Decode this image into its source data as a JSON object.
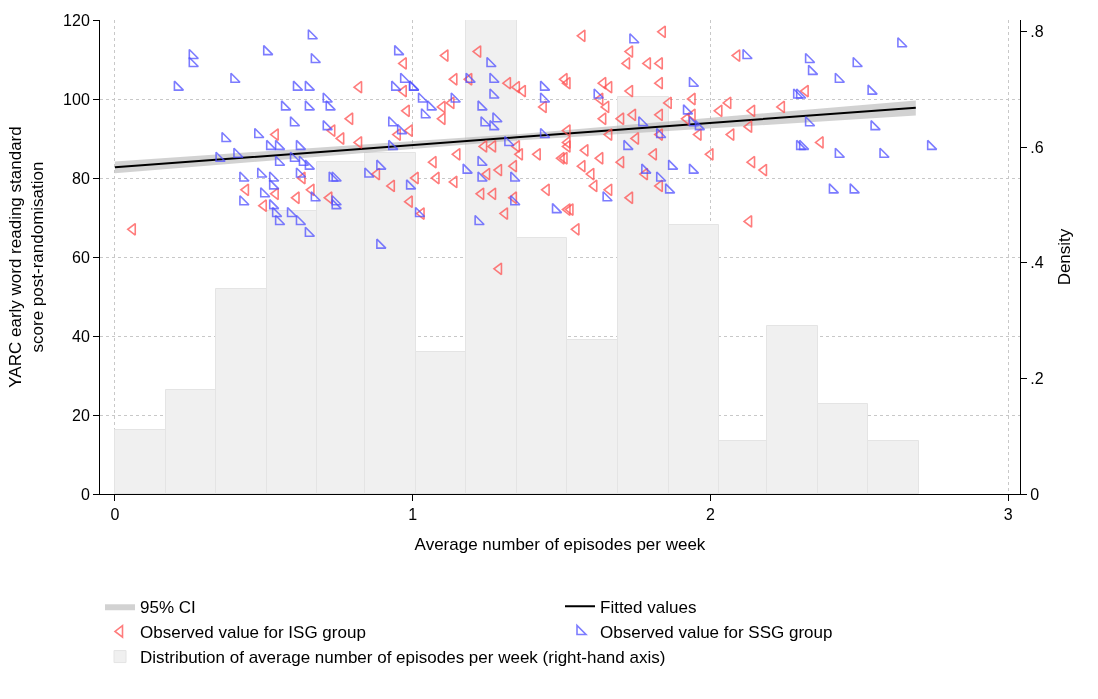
{
  "chart_data": {
    "type": "scatter",
    "xlabel": "Average number of episodes per week",
    "ylabel": "YARC early word reading standard score post-randomisation",
    "y2label": "Density",
    "xlim": [
      -0.05,
      3.04
    ],
    "xticks": [
      0,
      1,
      2,
      3
    ],
    "ylim": [
      0,
      120
    ],
    "yticks": [
      0,
      20,
      40,
      60,
      80,
      100,
      120
    ],
    "y2lim": [
      0,
      0.82
    ],
    "y2ticks": [
      0,
      {
        "value": 0.2,
        "label": ".2"
      },
      {
        "value": 0.4,
        "label": ".4"
      },
      {
        "value": 0.6,
        "label": ".6"
      },
      {
        "value": 0.8,
        "label": ".8"
      }
    ],
    "grid": true,
    "legend": "bottom",
    "series": [
      {
        "type": "histogram",
        "name": "Distribution of average number of episodes per week (right-hand axis)",
        "axis": "y2",
        "color": "#f0f0f0",
        "bins": [
          0,
          0.17,
          0.34,
          0.51,
          0.68,
          0.84,
          1.01,
          1.18,
          1.35,
          1.52,
          1.69,
          1.86,
          2.03,
          2.19,
          2.36,
          2.53,
          2.7
        ],
        "values": [
          0.11,
          0.18,
          0.355,
          0.49,
          0.575,
          0.59,
          0.245,
          0.82,
          0.443,
          0.266,
          0.687,
          0.466,
          0.091,
          0.29,
          0.156,
          0.091
        ]
      },
      {
        "type": "line",
        "name": "95% CI",
        "color": "#b4b4b4",
        "x": [
          0,
          1.35,
          2.69
        ],
        "values": [
          null,
          null,
          null
        ],
        "lower": [
          81.2,
          89.5,
          95.8
        ],
        "upper": [
          84.2,
          91.1,
          99.6
        ]
      },
      {
        "type": "line",
        "name": "Fitted values",
        "color": "#000000",
        "x": [
          0,
          1.35,
          2.69
        ],
        "values": [
          82.7,
          90.3,
          97.8
        ]
      },
      {
        "name": "Observed value for ISG group",
        "color": "#ff5050",
        "x": [
          0.54,
          0.73,
          0.44,
          0.5,
          0.54,
          0.61,
          0.63,
          0.66,
          0.72,
          0.06,
          0.82,
          0.97,
          0.97,
          0.79,
          0.76,
          0.82,
          0.98,
          0.99,
          0.95,
          0.88,
          0.93,
          1.01,
          0.99,
          1.03,
          1.07,
          1.08,
          1.14,
          1.15,
          1.11,
          1.14,
          1.1,
          1.1,
          1.13,
          1.22,
          1.19,
          1.24,
          1.27,
          1.25,
          1.29,
          1.23,
          1.27,
          1.29,
          1.31,
          1.34,
          1.32,
          1.35,
          1.37,
          1.35,
          1.36,
          1.34,
          1.42,
          1.44,
          1.45,
          1.5,
          1.51,
          1.52,
          1.52,
          1.57,
          1.84,
          1.73,
          1.72,
          1.79,
          1.83,
          1.52,
          1.64,
          1.66,
          1.63,
          1.65,
          1.64,
          1.73,
          1.83,
          1.86,
          1.7,
          1.74,
          1.83,
          1.94,
          1.94,
          1.92,
          1.96,
          1.83,
          1.66,
          1.75,
          1.52,
          1.52,
          1.51,
          1.58,
          1.63,
          1.7,
          1.81,
          1.57,
          1.6,
          1.61,
          1.66,
          1.73,
          1.83,
          1.53,
          1.55,
          2.0,
          2.03,
          2.06,
          2.07,
          2.13,
          2.14,
          2.14,
          2.18,
          2.24,
          2.09,
          2.13,
          1.78,
          2.32,
          2.37
        ],
        "values": [
          91,
          92,
          77,
          73,
          76,
          75,
          80,
          77,
          75,
          67,
          103,
          109,
          102,
          95,
          90,
          89,
          97,
          92,
          91,
          81,
          78,
          80,
          74,
          71,
          84,
          80,
          79,
          86,
          111,
          105,
          98,
          95,
          99,
          112,
          105,
          88,
          88,
          81,
          82,
          76,
          76,
          57,
          71,
          75,
          104,
          103,
          102,
          88,
          86,
          83,
          86,
          98,
          77,
          85,
          105,
          89,
          72,
          116,
          117,
          112,
          109,
          109,
          109,
          104,
          104,
          103,
          100,
          98,
          95,
          102,
          104,
          99,
          95,
          96,
          96,
          100,
          96,
          95,
          91,
          91,
          91,
          90,
          92,
          88,
          85,
          87,
          85,
          84,
          86,
          83,
          81,
          78,
          77,
          75,
          78,
          72,
          67,
          86,
          97,
          99,
          91,
          93,
          97,
          84,
          82,
          98,
          111,
          69,
          81,
          102,
          89
        ]
      },
      {
        "name": "Observed value for SSG group",
        "color": "#5050ff",
        "x": [
          0.66,
          0.51,
          0.26,
          0.26,
          0.21,
          0.4,
          0.67,
          0.61,
          0.65,
          0.71,
          0.57,
          0.65,
          0.72,
          0.6,
          0.71,
          0.48,
          0.37,
          0.41,
          0.35,
          0.52,
          0.55,
          0.62,
          0.55,
          0.6,
          0.63,
          0.65,
          0.62,
          0.43,
          0.49,
          0.53,
          0.53,
          0.5,
          0.43,
          0.67,
          0.73,
          0.74,
          0.53,
          0.54,
          0.55,
          0.59,
          0.62,
          0.65,
          0.95,
          0.97,
          0.94,
          1.0,
          1.0,
          1.03,
          1.06,
          1.04,
          1.14,
          0.93,
          0.96,
          0.93,
          0.89,
          0.85,
          0.99,
          1.02,
          0.89,
          0.74,
          0.74,
          1.18,
          1.19,
          1.26,
          1.27,
          1.27,
          1.23,
          1.24,
          1.28,
          1.27,
          1.23,
          1.23,
          1.22,
          1.32,
          1.34,
          1.34,
          1.44,
          1.44,
          1.44,
          1.48,
          1.74,
          1.62,
          1.77,
          1.83,
          1.72,
          1.87,
          1.78,
          1.94,
          1.83,
          1.86,
          1.65,
          1.94,
          1.92,
          1.94,
          1.96,
          2.12,
          2.29,
          2.3,
          2.64,
          2.33,
          2.34,
          2.49,
          2.43,
          2.54,
          2.3,
          2.33,
          2.55,
          2.31,
          2.43,
          2.58,
          2.74,
          2.41,
          2.48
        ],
        "values": [
          116,
          112,
          111,
          109,
          103,
          105,
          110,
          103,
          103,
          100,
          98,
          98,
          98,
          94,
          93,
          91,
          90,
          86,
          85,
          88,
          88,
          88,
          84,
          85,
          84,
          83,
          81,
          80,
          81,
          80,
          78,
          76,
          74,
          75,
          80,
          74,
          73,
          71,
          69,
          71,
          69,
          66,
          112,
          105,
          103,
          103,
          103,
          100,
          98,
          96,
          100,
          94,
          92,
          88,
          83,
          81,
          78,
          71,
          63,
          80,
          73,
          82,
          105,
          109,
          105,
          101,
          98,
          94,
          95,
          93,
          84,
          80,
          69,
          89,
          80,
          74,
          103,
          100,
          91,
          72,
          115,
          101,
          94,
          91,
          88,
          83,
          82,
          82,
          80,
          77,
          75,
          104,
          97,
          94,
          93,
          111,
          101,
          88,
          114,
          110,
          107,
          109,
          105,
          102,
          101,
          94,
          93,
          88,
          86,
          86,
          88,
          77,
          77
        ]
      }
    ]
  }
}
